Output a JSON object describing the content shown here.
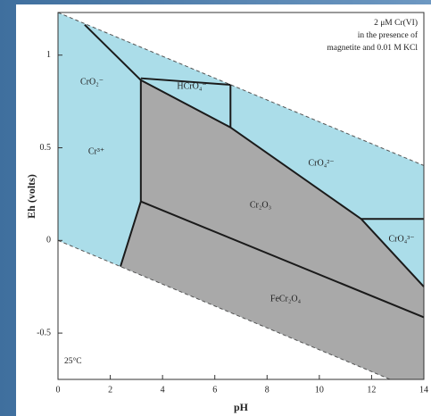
{
  "chart_data": {
    "type": "phase",
    "xlabel": "pH",
    "ylabel": "Eh (volts)",
    "xlim": [
      0,
      14
    ],
    "ylim": [
      -0.75,
      1.23
    ],
    "xticks": [
      0,
      2,
      4,
      6,
      8,
      10,
      12,
      14
    ],
    "yticks": [
      -0.5,
      0,
      0.5,
      1
    ],
    "annotations": [
      "2 μM Cr(VI)",
      "in the presence of",
      "magnetite and 0.01 M KCl",
      "25°C"
    ],
    "regions": [
      {
        "color": "#abdde9",
        "x": [
          0,
          14,
          14,
          12.71,
          0
        ],
        "y": [
          1.23,
          0.404,
          -0.75,
          -0.75,
          0
        ]
      },
      {
        "color": "#a9a9a9",
        "x": [
          3.17,
          6.6,
          11.6,
          14,
          14,
          12.71,
          2.39,
          3.17
        ],
        "y": [
          0.865,
          0.61,
          0.116,
          -0.25,
          -0.75,
          -0.75,
          -0.141,
          0.21
        ]
      }
    ],
    "boundaries": [
      {
        "x": [
          1.02,
          3.17,
          3.17,
          2.39
        ],
        "y": [
          1.164,
          0.865,
          0.21,
          -0.141
        ]
      },
      {
        "x": [
          3.17,
          6.6,
          11.6,
          14
        ],
        "y": [
          0.865,
          0.61,
          0.116,
          -0.25
        ]
      },
      {
        "x": [
          3.17,
          14
        ],
        "y": [
          0.21,
          -0.415
        ]
      },
      {
        "x": [
          6.6,
          6.6
        ],
        "y": [
          0.61,
          0.84
        ]
      },
      {
        "x": [
          11.6,
          14
        ],
        "y": [
          0.116,
          0.116
        ]
      },
      {
        "x": [
          3.17,
          6.6
        ],
        "y": [
          0.875,
          0.84
        ]
      }
    ],
    "water_lines": [
      {
        "x": [
          0,
          14
        ],
        "y": [
          1.23,
          0.404
        ]
      },
      {
        "x": [
          0,
          12.71
        ],
        "y": [
          0,
          -0.75
        ]
      }
    ],
    "species": [
      "CrO₂⁻",
      "HCrO₄⁻",
      "Cr³⁺",
      "CrO₄²⁻",
      "Cr₂O₃",
      "CrO₄³⁻",
      "FeCr₂O₄"
    ]
  }
}
